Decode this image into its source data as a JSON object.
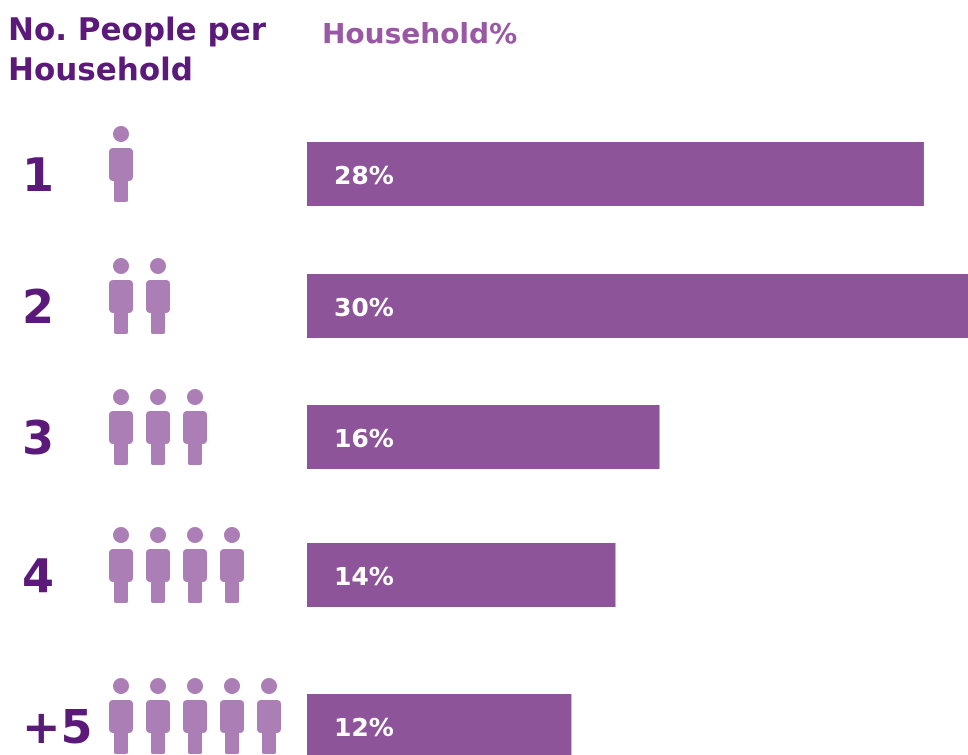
{
  "headers": {
    "category_title": "No. People per Household",
    "value_title": "Household%"
  },
  "colors": {
    "title": "#5b1a7a",
    "subtitle": "#9a57a6",
    "category_number": "#5b1a7a",
    "person_icon": "#ab7fb5",
    "bar": "#8e5499",
    "bar_label": "#ffffff"
  },
  "chart_data": {
    "type": "bar",
    "orientation": "horizontal",
    "categories": [
      "1",
      "2",
      "3",
      "4",
      "+5"
    ],
    "values": [
      28,
      30,
      16,
      14,
      12
    ],
    "data_labels": [
      "28%",
      "30%",
      "16%",
      "14%",
      "12%"
    ],
    "icons_per_row": [
      1,
      2,
      3,
      4,
      5
    ],
    "icon": "person-icon",
    "xlabel": "Household%",
    "ylabel": "No. People per Household",
    "xlim": [
      0,
      30
    ],
    "unit": "%",
    "grid": false,
    "legend": "none"
  }
}
